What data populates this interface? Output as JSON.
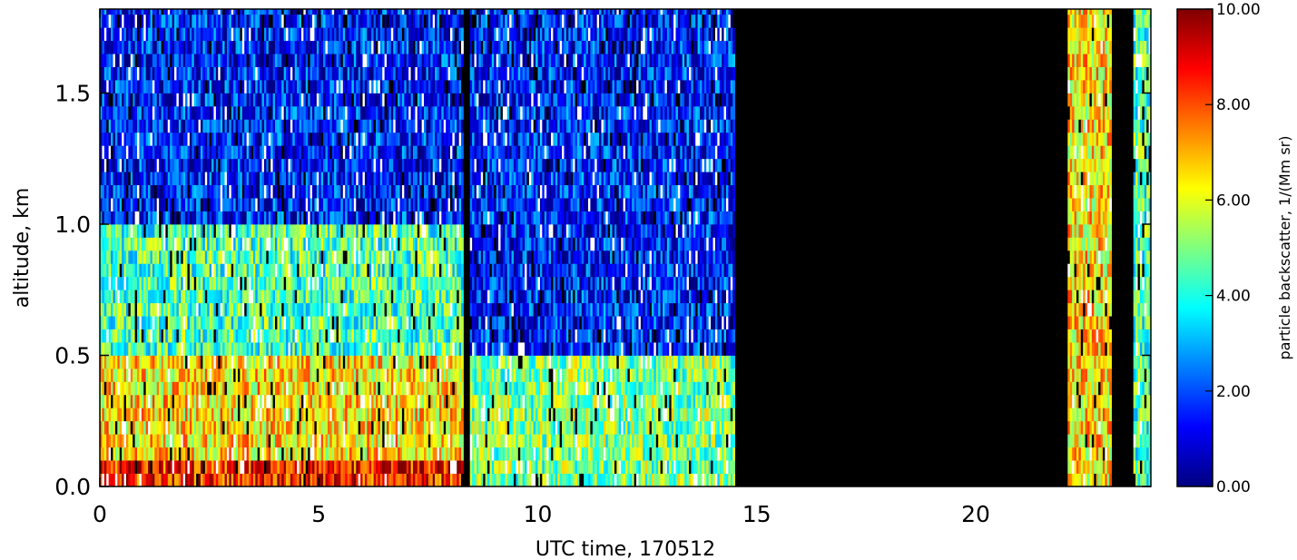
{
  "chart_data": {
    "type": "heatmap",
    "title": "",
    "xlabel": "UTC time, 170512",
    "ylabel": "altitude, km",
    "xlim": [
      0,
      24
    ],
    "ylim": [
      0,
      1.82
    ],
    "x_ticks": [
      0,
      5,
      10,
      15,
      20
    ],
    "x_tick_labels": [
      "0",
      "5",
      "10",
      "15",
      "20"
    ],
    "y_ticks": [
      0.0,
      0.5,
      1.0,
      1.5
    ],
    "y_tick_labels": [
      "0.0",
      "0.5",
      "1.0",
      "1.5"
    ],
    "colorbar": {
      "label": "particle backscatter, 1/(Mm sr)",
      "range": [
        0,
        10
      ],
      "ticks": [
        0,
        2,
        4,
        6,
        8,
        10
      ],
      "tick_labels": [
        "0.00",
        "2.00",
        "4.00",
        "6.00",
        "8.00",
        "10.00"
      ],
      "colormap": [
        "#00007f",
        "#0000ff",
        "#007fff",
        "#00ffff",
        "#7fff7f",
        "#ffff00",
        "#ff7f00",
        "#ff0000",
        "#7f0000"
      ]
    },
    "no_data_color": "#000000",
    "saturated_color": "#ffffff",
    "segments": [
      {
        "t_start": 0.0,
        "t_end": 8.3,
        "description_values": {
          "below_0.1km": 8.5,
          "0.1-0.45km": 6.5,
          "0.45-1.0km": 4.5,
          "above_1.0km": 1.5
        }
      },
      {
        "t_start": 8.3,
        "t_end": 8.45,
        "state": "no-data"
      },
      {
        "t_start": 8.45,
        "t_end": 14.5,
        "description_values": {
          "below_0.45km": 5.0,
          "above_0.45km": 1.5
        }
      },
      {
        "t_start": 14.5,
        "t_end": 22.1,
        "state": "no-data"
      },
      {
        "t_start": 22.1,
        "t_end": 23.1,
        "description_values": {
          "all": 6.5
        }
      },
      {
        "t_start": 23.1,
        "t_end": 23.6,
        "state": "no-data"
      },
      {
        "t_start": 23.6,
        "t_end": 24.0,
        "description_values": {
          "all": 4.5
        }
      }
    ]
  }
}
